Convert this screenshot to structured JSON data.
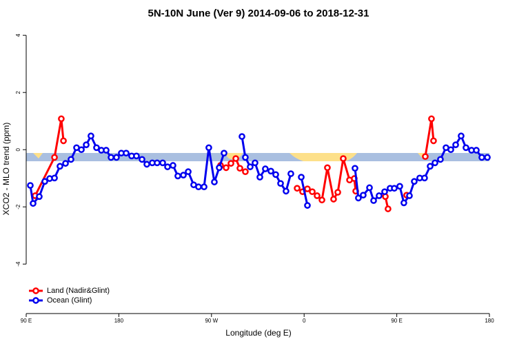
{
  "chart_data": {
    "type": "line",
    "title": "5N-10N June (Ver 9)   2014-09-06 to 2018-12-31",
    "x_label": "Longitude (deg E)",
    "y_label": "XCO2 - MLO trend (ppm)",
    "xlim": [
      90,
      540
    ],
    "xticks": [
      {
        "value": 90,
        "label": "90 E"
      },
      180,
      {
        "value": 270,
        "label": "90 W"
      },
      {
        "value": 360,
        "label": "0"
      },
      {
        "value": 450,
        "label": "90 E"
      },
      {
        "value": 540,
        "label": "180"
      }
    ],
    "ylim": [
      -5.73,
      4.27
    ],
    "yticks": [
      -4,
      -2,
      0,
      2,
      4
    ],
    "legend": "bottomleft",
    "series": [
      {
        "name": "Land (Nadir&Glint)",
        "color": "#ff0000",
        "x": [
          98.7,
          117.5,
          124.1,
          126.2,
          null,
          278.8,
          284.2,
          288.9,
          293.6,
          297.6,
          302.9,
          null,
          353.2,
          358.5,
          363.2,
          367.9,
          372.6,
          377.3,
          382.6,
          388.6,
          392.7,
          398.0,
          404.1,
          408.7,
          410.1,
          null,
          438.9,
          441.5,
          null,
          459.6,
          null,
          477.7,
          483.7,
          485.7
        ],
        "values": [
          -1.61,
          -0.27,
          1.08,
          0.31,
          null,
          -0.55,
          -0.63,
          -0.48,
          -0.31,
          -0.65,
          -0.77,
          null,
          -1.35,
          -1.47,
          -1.37,
          -1.47,
          -1.61,
          -1.76,
          -0.63,
          -1.73,
          -1.49,
          -0.31,
          -1.06,
          -1.01,
          -1.45,
          null,
          -1.64,
          -2.07,
          null,
          -1.59,
          null,
          -0.24,
          1.08,
          0.31
        ]
      },
      {
        "name": "Ocean (Glint)",
        "color": "#0000ee",
        "x": [
          94.0,
          96.7,
          102.7,
          108.1,
          112.8,
          117.5,
          122.8,
          128.2,
          133.5,
          138.9,
          143.6,
          148.3,
          152.9,
          158.3,
          163.0,
          167.7,
          172.4,
          177.7,
          182.4,
          187.1,
          192.4,
          197.1,
          202.5,
          207.2,
          212.5,
          217.2,
          222.6,
          227.3,
          232.6,
          237.3,
          242.7,
          247.4,
          252.7,
          257.4,
          262.8,
          267.4,
          272.8,
          277.5,
          282.2,
          null,
          299.6,
          302.9,
          307.6,
          312.3,
          317.0,
          322.3,
          327.7,
          332.4,
          337.1,
          342.4,
          347.1,
          null,
          357.2,
          363.2,
          null,
          409.4,
          412.7,
          417.4,
          423.5,
          427.5,
          432.8,
          438.2,
          443.5,
          447.6,
          452.9,
          456.9,
          462.3,
          467.0,
          472.3,
          477.0,
          482.4,
          487.1,
          492.4,
          497.8,
          502.5,
          507.2,
          512.5,
          517.2,
          522.6,
          527.3,
          532.6,
          538.0
        ],
        "values": [
          -1.25,
          -1.88,
          -1.64,
          -1.11,
          -1.01,
          -0.99,
          -0.58,
          -0.48,
          -0.34,
          0.07,
          0,
          0.17,
          0.48,
          0.07,
          -0.02,
          -0.02,
          -0.27,
          -0.27,
          -0.12,
          -0.12,
          -0.22,
          -0.22,
          -0.34,
          -0.51,
          -0.46,
          -0.46,
          -0.46,
          -0.6,
          -0.55,
          -0.92,
          -0.89,
          -0.77,
          -1.23,
          -1.3,
          -1.3,
          0.07,
          -1.13,
          -0.63,
          -0.12,
          null,
          0.46,
          -0.27,
          -0.6,
          -0.46,
          -0.96,
          -0.67,
          -0.75,
          -0.87,
          -1.18,
          -1.45,
          -0.84,
          null,
          -0.96,
          -1.95,
          null,
          -0.65,
          -1.69,
          -1.59,
          -1.33,
          -1.78,
          -1.61,
          -1.47,
          -1.35,
          -1.35,
          -1.28,
          -1.86,
          -1.61,
          -1.11,
          -0.99,
          -0.99,
          -0.58,
          -0.46,
          -0.34,
          0.07,
          0,
          0.17,
          0.48,
          0.07,
          -0.02,
          -0.02,
          -0.27,
          -0.27
        ]
      }
    ]
  }
}
